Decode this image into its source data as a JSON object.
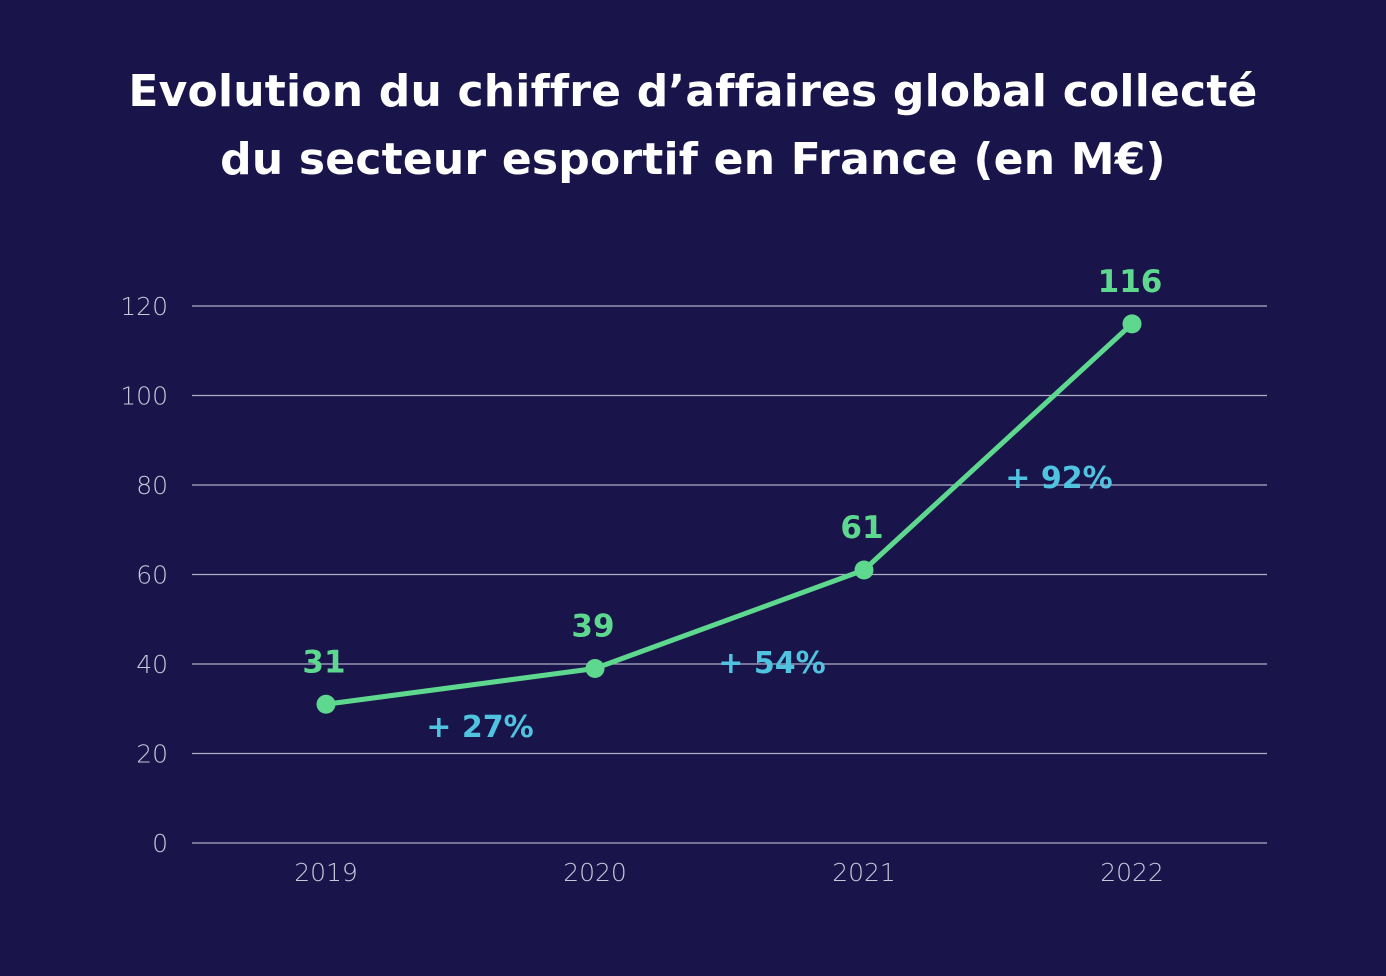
{
  "title": {
    "line1": "Evolution du chiffre d’affaires global collecté",
    "line2": "du secteur esportif en France (en M€)"
  },
  "colors": {
    "background": "#19154a",
    "line": "#5ed88f",
    "value_label": "#5ed88f",
    "growth_label": "#4fc3e0",
    "grid": "#c8c8d8",
    "axis_text": "#c8c8d8",
    "title": "#ffffff"
  },
  "chart_data": {
    "type": "line",
    "title": "Evolution du chiffre d’affaires global collecté du secteur esportif en France (en M€)",
    "categories": [
      "2019",
      "2020",
      "2021",
      "2022"
    ],
    "series": [
      {
        "values": [
          31,
          39,
          61,
          116
        ],
        "data_labels": [
          "31",
          "39",
          "61",
          "116"
        ]
      }
    ],
    "annotations": [
      {
        "text": "+ 27%",
        "between": [
          "2019",
          "2020"
        ]
      },
      {
        "text": "+ 54%",
        "between": [
          "2020",
          "2021"
        ]
      },
      {
        "text": "+ 92%",
        "between": [
          "2021",
          "2022"
        ]
      }
    ],
    "ylim": [
      0,
      120
    ],
    "yticks": [
      "0",
      "20",
      "40",
      "60",
      "80",
      "100",
      "120"
    ],
    "grid": true,
    "legend": "none",
    "xlabel": "",
    "ylabel": ""
  }
}
